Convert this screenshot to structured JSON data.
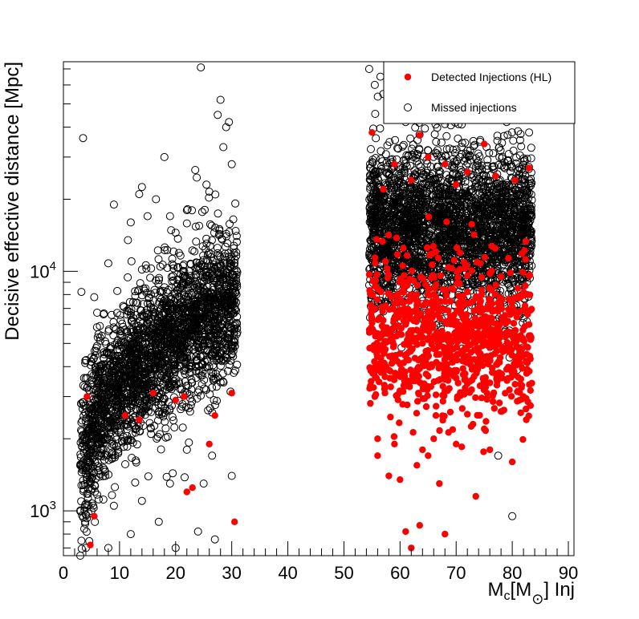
{
  "chart_data": {
    "type": "scatter",
    "title": "",
    "xlabel": {
      "main": "M",
      "sub1": "c",
      "bracket_open": "[M",
      "sun": "⊙",
      "bracket_close": "] Inj"
    },
    "ylabel": "Decisive effective distance [Mpc]",
    "xlim": [
      0,
      91
    ],
    "ylim": [
      650,
      75000
    ],
    "yscale": "log",
    "x_ticks": [
      0,
      10,
      20,
      30,
      40,
      50,
      60,
      70,
      80,
      90
    ],
    "x_tick_labels": [
      "0",
      "10",
      "20",
      "30",
      "40",
      "50",
      "60",
      "70",
      "80",
      "90"
    ],
    "y_ticks": [
      1000,
      10000
    ],
    "y_tick_labels": [
      {
        "base": "10",
        "exp": "3"
      },
      {
        "base": "10",
        "exp": "4"
      }
    ],
    "grid": false,
    "legend": {
      "placement": "top-right",
      "entries": [
        "Detected Injections (HL)",
        "Missed injections"
      ]
    },
    "colors": {
      "detected": "#ff0000",
      "missed": "#000000"
    },
    "series": [
      {
        "name": "Detected Injections (HL)",
        "marker": "filled-circle",
        "color": "#ff0000",
        "points": [
          [
            4.2,
            3000
          ],
          [
            4.8,
            720
          ],
          [
            5.5,
            950
          ],
          [
            11,
            2500
          ],
          [
            13.5,
            2400
          ],
          [
            16,
            3100
          ],
          [
            20,
            2900
          ],
          [
            21.5,
            3000
          ],
          [
            22,
            1200
          ],
          [
            23,
            1250
          ],
          [
            26,
            1900
          ],
          [
            27,
            2500
          ],
          [
            30.5,
            900
          ],
          [
            30,
            3100
          ],
          [
            55,
            38000
          ],
          [
            55.5,
            3000
          ],
          [
            56,
            2000
          ],
          [
            56,
            1700
          ],
          [
            58,
            1400
          ],
          [
            59,
            1900
          ],
          [
            60,
            1350
          ],
          [
            61,
            820
          ],
          [
            62,
            700
          ],
          [
            63,
            1550
          ],
          [
            63.5,
            870
          ],
          [
            64,
            1800
          ],
          [
            65,
            1700
          ],
          [
            66,
            2000
          ],
          [
            67,
            1300
          ],
          [
            68,
            800
          ],
          [
            70,
            1900
          ],
          [
            71,
            1850
          ],
          [
            73,
            2300
          ],
          [
            73.5,
            1150
          ],
          [
            75,
            2200
          ],
          [
            76,
            1800
          ],
          [
            78,
            2600
          ],
          [
            80,
            1600
          ],
          [
            82,
            3000
          ],
          [
            82.5,
            2400
          ],
          [
            83,
            27000
          ],
          [
            63.5,
            37000
          ],
          [
            68,
            28000
          ],
          [
            75,
            34000
          ],
          [
            59,
            28000
          ],
          [
            65,
            30000
          ],
          [
            72,
            26000
          ],
          [
            57,
            22000
          ],
          [
            62,
            24000
          ],
          [
            70,
            23000
          ],
          [
            77,
            25000
          ],
          [
            80.5,
            24000
          ],
          [
            66,
            8000
          ],
          [
            69,
            6500
          ],
          [
            73,
            7500
          ],
          [
            60,
            9000
          ],
          [
            78,
            9500
          ],
          [
            81,
            8500
          ],
          [
            56,
            5500
          ],
          [
            61,
            6000
          ],
          [
            64,
            5000
          ],
          [
            67,
            4500
          ],
          [
            71,
            5200
          ],
          [
            74,
            4200
          ],
          [
            76,
            4800
          ],
          [
            79,
            3900
          ],
          [
            57.5,
            4000
          ],
          [
            62.5,
            3600
          ],
          [
            65.5,
            3300
          ],
          [
            68.5,
            3700
          ],
          [
            72,
            3400
          ],
          [
            75.5,
            3100
          ],
          [
            79.5,
            3200
          ],
          [
            83,
            6000
          ],
          [
            55.5,
            7000
          ],
          [
            58.5,
            7800
          ],
          [
            63,
            7200
          ],
          [
            67,
            6800
          ],
          [
            70.5,
            7900
          ],
          [
            74.5,
            6300
          ],
          [
            77.5,
            7400
          ],
          [
            82,
            6900
          ]
        ]
      },
      {
        "name": "Missed injections",
        "marker": "open-circle",
        "color": "#000000",
        "points": [
          [
            3.5,
            36000
          ],
          [
            3.2,
            8200
          ],
          [
            5.5,
            7800
          ],
          [
            8,
            10800
          ],
          [
            9,
            19000
          ],
          [
            11.5,
            13500
          ],
          [
            12,
            16000
          ],
          [
            13.5,
            21000
          ],
          [
            14,
            22500
          ],
          [
            15,
            17000
          ],
          [
            16.5,
            20000
          ],
          [
            18,
            30000
          ],
          [
            19,
            17000
          ],
          [
            20,
            14500
          ],
          [
            22,
            18000
          ],
          [
            23.5,
            26500
          ],
          [
            24.5,
            71000
          ],
          [
            25.5,
            23000
          ],
          [
            26,
            21500
          ],
          [
            27.5,
            45000
          ],
          [
            28,
            52000
          ],
          [
            28.5,
            33000
          ],
          [
            29,
            40000
          ],
          [
            29.5,
            42000
          ],
          [
            30,
            28000
          ],
          [
            54.5,
            70000
          ],
          [
            55.5,
            60000
          ],
          [
            56.5,
            65000
          ],
          [
            57,
            55000
          ],
          [
            58,
            45000
          ],
          [
            59.5,
            48000
          ],
          [
            61,
            42000
          ],
          [
            63,
            50000
          ],
          [
            66,
            46000
          ],
          [
            69,
            52000
          ],
          [
            71,
            41000
          ],
          [
            73,
            45000
          ],
          [
            76,
            48000
          ],
          [
            79,
            42000
          ],
          [
            82,
            50000
          ],
          [
            83,
            38000
          ],
          [
            80,
            950
          ],
          [
            77.5,
            1700
          ],
          [
            3,
            650
          ],
          [
            4,
            700
          ],
          [
            8,
            700
          ],
          [
            12,
            800
          ],
          [
            17,
            900
          ],
          [
            20,
            700
          ],
          [
            24,
            820
          ],
          [
            27,
            760
          ],
          [
            30,
            1400
          ],
          [
            5,
            1000
          ],
          [
            9,
            1050
          ],
          [
            14,
            1100
          ],
          [
            19,
            1300
          ],
          [
            25,
            1300
          ],
          [
            26.5,
            1700
          ],
          [
            22,
            1800
          ]
        ]
      }
    ],
    "clusters": [
      {
        "series": "Missed injections",
        "count": 2600,
        "x_range": [
          3,
          31
        ],
        "curve": [
          [
            3,
            1500
          ],
          [
            6,
            2600
          ],
          [
            10,
            3400
          ],
          [
            15,
            4300
          ],
          [
            20,
            5400
          ],
          [
            25,
            6400
          ],
          [
            30,
            7600
          ]
        ],
        "log_spread": 0.16
      },
      {
        "series": "Missed injections",
        "count": 3000,
        "x_range": [
          54.5,
          83.5
        ],
        "center": 15000,
        "log_spread": 0.17
      },
      {
        "series": "Detected Injections (HL)",
        "count": 900,
        "x_range": [
          54.5,
          83.5
        ],
        "center": 5200,
        "log_spread": 0.16
      }
    ]
  }
}
